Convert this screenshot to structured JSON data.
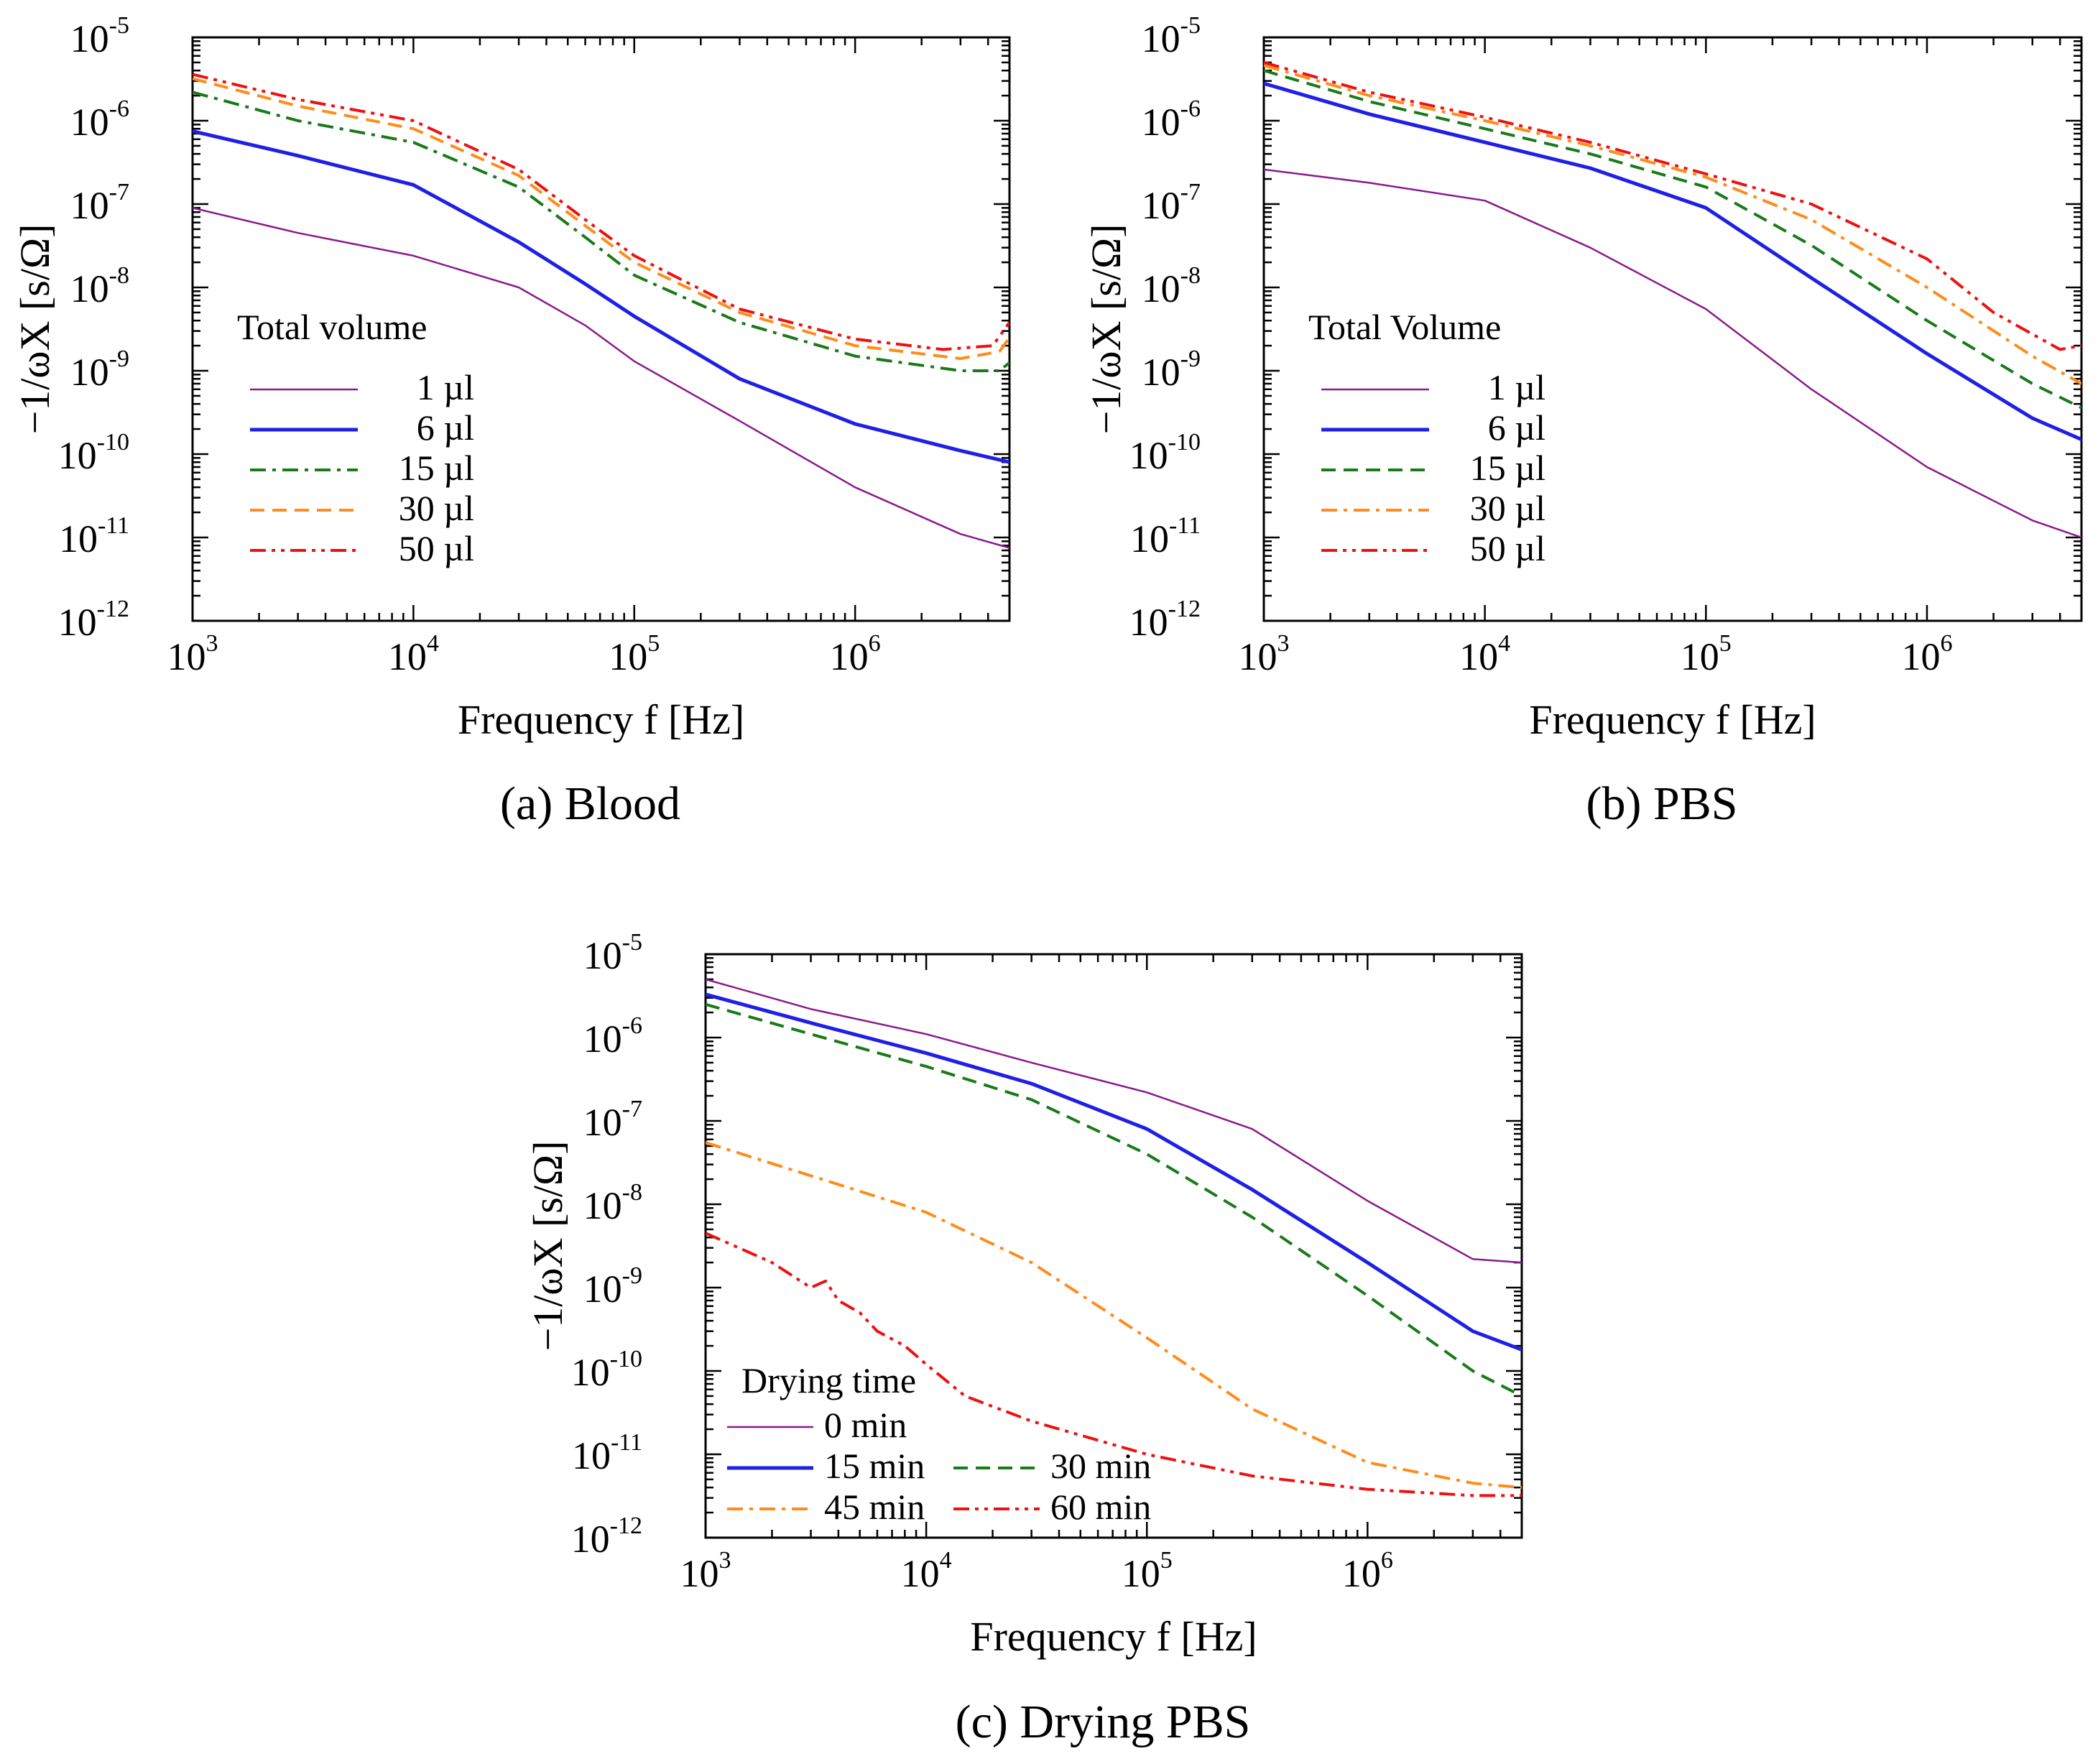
{
  "chart_data": [
    {
      "type": "line",
      "panel": "a",
      "caption": "(a) Blood",
      "xlabel": "Frequency f [Hz]",
      "ylabel": "−1/ωX [s/Ω]",
      "xscale": "log",
      "yscale": "log",
      "xlim": [
        1000,
        5000000
      ],
      "ylim": [
        1e-12,
        1e-05
      ],
      "x_ticks": [
        {
          "value": 1000,
          "base": "10",
          "exp": "3"
        },
        {
          "value": 10000,
          "base": "10",
          "exp": "4"
        },
        {
          "value": 100000,
          "base": "10",
          "exp": "5"
        },
        {
          "value": 1000000,
          "base": "10",
          "exp": "6"
        }
      ],
      "y_ticks": [
        {
          "value": 1e-05,
          "base": "10",
          "exp": "-5"
        },
        {
          "value": 1e-06,
          "base": "10",
          "exp": "-6"
        },
        {
          "value": 1e-07,
          "base": "10",
          "exp": "-7"
        },
        {
          "value": 1e-08,
          "base": "10",
          "exp": "-8"
        },
        {
          "value": 1e-09,
          "base": "10",
          "exp": "-9"
        },
        {
          "value": 1e-10,
          "base": "10",
          "exp": "-10"
        },
        {
          "value": 1e-11,
          "base": "10",
          "exp": "-11"
        },
        {
          "value": 1e-12,
          "base": "10",
          "exp": "-12"
        }
      ],
      "legend_title": "Total volume",
      "legend_position": "lower-left",
      "series": [
        {
          "name": "1 µl",
          "color": "#8b1a8b",
          "dash": "solid",
          "width": 2.5,
          "x": [
            1000,
            3000,
            10000,
            30000,
            60000,
            100000,
            300000,
            1000000,
            3000000,
            5000000
          ],
          "y": [
            9e-08,
            4.5e-08,
            2.4e-08,
            1e-08,
            3.5e-09,
            1.3e-09,
            2.5e-10,
            4e-11,
            1.1e-11,
            7.5e-12
          ]
        },
        {
          "name": "6 µl",
          "color": "#1f1fe6",
          "dash": "solid",
          "width": 5,
          "x": [
            1000,
            3000,
            10000,
            30000,
            60000,
            100000,
            300000,
            1000000,
            3000000,
            5000000
          ],
          "y": [
            7.5e-07,
            3.8e-07,
            1.7e-07,
            3.5e-08,
            1.1e-08,
            4.5e-09,
            8e-10,
            2.3e-10,
            1.1e-10,
            8e-11
          ]
        },
        {
          "name": "15 µl",
          "color": "#1a7a1a",
          "dash": "dashdot",
          "width": 4,
          "x": [
            1000,
            3000,
            10000,
            30000,
            60000,
            100000,
            300000,
            1000000,
            3000000,
            4500000,
            5000000
          ],
          "y": [
            2.2e-06,
            1e-06,
            5.5e-07,
            1.6e-07,
            4e-08,
            1.4e-08,
            3.8e-09,
            1.5e-09,
            1e-09,
            1e-09,
            1.25e-09
          ]
        },
        {
          "name": "30 µl",
          "color": "#ff8c1a",
          "dash": "dashed",
          "width": 4,
          "x": [
            1000,
            3000,
            10000,
            30000,
            60000,
            100000,
            300000,
            1000000,
            3000000,
            4500000,
            5000000
          ],
          "y": [
            3.2e-06,
            1.5e-06,
            8e-07,
            2.2e-07,
            5.5e-08,
            2e-08,
            5e-09,
            2e-09,
            1.4e-09,
            1.7e-09,
            2.5e-09
          ]
        },
        {
          "name": "50 µl",
          "color": "#ee1111",
          "dash": "dashdotdot",
          "width": 4,
          "x": [
            1000,
            3000,
            10000,
            30000,
            60000,
            100000,
            300000,
            1000000,
            2500000,
            4200000,
            5000000
          ],
          "y": [
            3.6e-06,
            1.8e-06,
            1e-06,
            2.6e-07,
            6.5e-08,
            2.4e-08,
            5.5e-09,
            2.4e-09,
            1.8e-09,
            2e-09,
            3.8e-09
          ]
        }
      ]
    },
    {
      "type": "line",
      "panel": "b",
      "caption": "(b) PBS",
      "xlabel": "Frequency f [Hz]",
      "ylabel": "−1/ωX [s/Ω]",
      "xscale": "log",
      "yscale": "log",
      "xlim": [
        1000,
        5000000
      ],
      "ylim": [
        1e-12,
        1e-05
      ],
      "x_ticks": [
        {
          "value": 1000,
          "base": "10",
          "exp": "3"
        },
        {
          "value": 10000,
          "base": "10",
          "exp": "4"
        },
        {
          "value": 100000,
          "base": "10",
          "exp": "5"
        },
        {
          "value": 1000000,
          "base": "10",
          "exp": "6"
        }
      ],
      "y_ticks": [
        {
          "value": 1e-05,
          "base": "10",
          "exp": "-5"
        },
        {
          "value": 1e-06,
          "base": "10",
          "exp": "-6"
        },
        {
          "value": 1e-07,
          "base": "10",
          "exp": "-7"
        },
        {
          "value": 1e-08,
          "base": "10",
          "exp": "-8"
        },
        {
          "value": 1e-09,
          "base": "10",
          "exp": "-9"
        },
        {
          "value": 1e-10,
          "base": "10",
          "exp": "-10"
        },
        {
          "value": 1e-11,
          "base": "10",
          "exp": "-11"
        },
        {
          "value": 1e-12,
          "base": "10",
          "exp": "-12"
        }
      ],
      "legend_title": "Total Volume",
      "legend_position": "lower-left",
      "series": [
        {
          "name": "1 µl",
          "color": "#8b1a8b",
          "dash": "solid",
          "width": 2.5,
          "x": [
            1000,
            3000,
            10000,
            30000,
            100000,
            300000,
            1000000,
            3000000,
            5000000
          ],
          "y": [
            2.6e-07,
            1.8e-07,
            1.1e-07,
            3e-08,
            5.5e-09,
            6e-10,
            7e-11,
            1.6e-11,
            1e-11
          ]
        },
        {
          "name": "6 µl",
          "color": "#1f1fe6",
          "dash": "solid",
          "width": 5,
          "x": [
            1000,
            3000,
            10000,
            30000,
            100000,
            300000,
            1000000,
            3000000,
            5000000
          ],
          "y": [
            2.8e-06,
            1.2e-06,
            5.5e-07,
            2.7e-07,
            9e-08,
            1.3e-08,
            1.6e-09,
            2.7e-10,
            1.5e-10
          ]
        },
        {
          "name": "15 µl",
          "color": "#1a7a1a",
          "dash": "dashed",
          "width": 4,
          "x": [
            1000,
            3000,
            10000,
            30000,
            100000,
            300000,
            1000000,
            3000000,
            5000000
          ],
          "y": [
            4e-06,
            1.7e-06,
            8e-07,
            4e-07,
            1.6e-07,
            3.2e-08,
            4e-09,
            7e-10,
            3.6e-10
          ]
        },
        {
          "name": "30 µl",
          "color": "#ff8c1a",
          "dash": "dashdot",
          "width": 4,
          "x": [
            1000,
            3000,
            10000,
            30000,
            100000,
            300000,
            1000000,
            3000000,
            5000000
          ],
          "y": [
            4.6e-06,
            2e-06,
            1e-06,
            5e-07,
            2.1e-07,
            6.5e-08,
            1e-08,
            1.5e-09,
            7e-10
          ]
        },
        {
          "name": "50 µl",
          "color": "#ee1111",
          "dash": "dashdotdot",
          "width": 4,
          "x": [
            1000,
            3000,
            10000,
            30000,
            100000,
            300000,
            1000000,
            2000000,
            4000000,
            5000000
          ],
          "y": [
            5e-06,
            2.2e-06,
            1.1e-06,
            5.5e-07,
            2.3e-07,
            1e-07,
            2.2e-08,
            5e-09,
            1.8e-09,
            2e-09
          ]
        }
      ]
    },
    {
      "type": "line",
      "panel": "c",
      "caption": "(c) Drying PBS",
      "xlabel": "Frequency f [Hz]",
      "ylabel": "−1/ωX [s/Ω]",
      "xscale": "log",
      "yscale": "log",
      "xlim": [
        1000,
        5000000
      ],
      "ylim": [
        1e-12,
        1e-05
      ],
      "x_ticks": [
        {
          "value": 1000,
          "base": "10",
          "exp": "3"
        },
        {
          "value": 10000,
          "base": "10",
          "exp": "4"
        },
        {
          "value": 100000,
          "base": "10",
          "exp": "5"
        },
        {
          "value": 1000000,
          "base": "10",
          "exp": "6"
        }
      ],
      "y_ticks": [
        {
          "value": 1e-05,
          "base": "10",
          "exp": "-5"
        },
        {
          "value": 1e-06,
          "base": "10",
          "exp": "-6"
        },
        {
          "value": 1e-07,
          "base": "10",
          "exp": "-7"
        },
        {
          "value": 1e-08,
          "base": "10",
          "exp": "-8"
        },
        {
          "value": 1e-09,
          "base": "10",
          "exp": "-9"
        },
        {
          "value": 1e-10,
          "base": "10",
          "exp": "-10"
        },
        {
          "value": 1e-11,
          "base": "10",
          "exp": "-11"
        },
        {
          "value": 1e-12,
          "base": "10",
          "exp": "-12"
        }
      ],
      "legend_title": "Drying time",
      "legend_position": "lower-left",
      "series": [
        {
          "name": "0 min",
          "color": "#8b1a8b",
          "dash": "solid",
          "width": 2.5,
          "x": [
            1000,
            3000,
            10000,
            30000,
            100000,
            300000,
            1000000,
            3000000,
            5000000
          ],
          "y": [
            5e-06,
            2.2e-06,
            1.1e-06,
            5e-07,
            2.2e-07,
            8e-08,
            1.1e-08,
            2.2e-09,
            2e-09
          ]
        },
        {
          "name": "15 min",
          "color": "#1f1fe6",
          "dash": "solid",
          "width": 5,
          "x": [
            1000,
            3000,
            10000,
            30000,
            100000,
            300000,
            1000000,
            3000000,
            5000000
          ],
          "y": [
            3.3e-06,
            1.5e-06,
            6.5e-07,
            2.8e-07,
            8e-08,
            1.5e-08,
            2e-09,
            3e-10,
            1.8e-10
          ]
        },
        {
          "name": "30 min",
          "color": "#1a7a1a",
          "dash": "dashed",
          "width": 4,
          "x": [
            1000,
            3000,
            10000,
            30000,
            100000,
            300000,
            1000000,
            3000000,
            5000000
          ],
          "y": [
            2.5e-06,
            1.1e-06,
            4.5e-07,
            1.8e-07,
            4e-08,
            7e-09,
            8e-10,
            1e-10,
            5e-11
          ]
        },
        {
          "name": "45 min",
          "color": "#ff8c1a",
          "dash": "dashdot",
          "width": 4,
          "x": [
            1000,
            3000,
            10000,
            30000,
            100000,
            300000,
            1000000,
            3000000,
            5000000
          ],
          "y": [
            5.5e-08,
            2.2e-08,
            8e-09,
            2e-09,
            2.5e-10,
            3.5e-11,
            8e-12,
            4.5e-12,
            4e-12
          ]
        },
        {
          "name": "60 min",
          "color": "#ee1111",
          "dash": "dashdotdot",
          "width": 4,
          "x": [
            1000,
            2000,
            3000,
            3500,
            4000,
            5000,
            6000,
            8000,
            10000,
            15000,
            30000,
            100000,
            300000,
            1000000,
            3000000,
            5000000
          ],
          "y": [
            4.5e-09,
            2e-09,
            1e-09,
            1.2e-09,
            7e-10,
            5e-10,
            3e-10,
            2e-10,
            1.2e-10,
            5e-11,
            2.5e-11,
            1e-11,
            5.5e-12,
            3.8e-12,
            3.2e-12,
            3.2e-12
          ]
        }
      ]
    }
  ]
}
